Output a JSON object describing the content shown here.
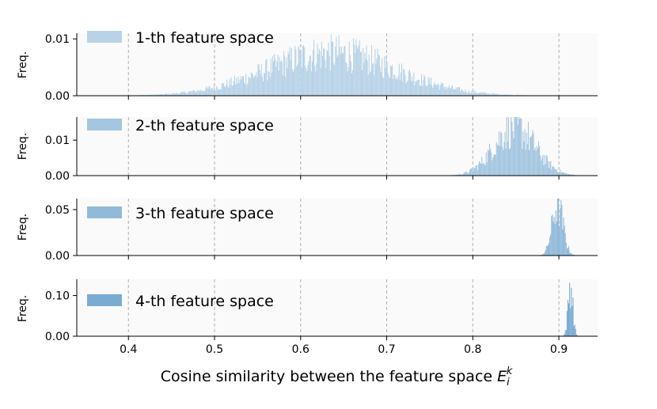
{
  "chart_data": {
    "type": "histogram",
    "xlabel": "Cosine similarity between the feature space",
    "xlabel_symbol": "E",
    "xlabel_sub": "i",
    "xlabel_sup": "k",
    "xlim": [
      0.34,
      0.945
    ],
    "x_ticks": [
      "0.4",
      "0.5",
      "0.6",
      "0.7",
      "0.8",
      "0.9"
    ],
    "x_tick_values": [
      0.4,
      0.5,
      0.6,
      0.7,
      0.8,
      0.9
    ],
    "grid": "x, dashed",
    "legend_placement": "upper-left",
    "panels": [
      {
        "ylabel": "Freq.",
        "legend": "1-th feature space",
        "color": "#b8d3e8",
        "ylim": [
          0,
          0.011
        ],
        "y_ticks": [
          "0.00",
          "0.01"
        ],
        "y_tick_values": [
          0,
          0.01
        ],
        "distribution": {
          "range": [
            0.37,
            0.92
          ],
          "peak_x": 0.635,
          "spread": 0.075,
          "peak_freq": 0.0075
        }
      },
      {
        "ylabel": "Freq.",
        "legend": "2-th feature space",
        "color": "#a4c6e0",
        "ylim": [
          0,
          0.0165
        ],
        "y_ticks": [
          "0.00",
          "0.01"
        ],
        "y_tick_values": [
          0,
          0.01
        ],
        "distribution": {
          "range": [
            0.67,
            0.93
          ],
          "peak_x": 0.848,
          "spread": 0.024,
          "peak_freq": 0.0135
        }
      },
      {
        "ylabel": "Freq.",
        "legend": "3-th feature space",
        "color": "#90b9da",
        "ylim": [
          0,
          0.062
        ],
        "y_ticks": [
          "0.00",
          "0.05"
        ],
        "y_tick_values": [
          0,
          0.05
        ],
        "distribution": {
          "range": [
            0.82,
            0.93
          ],
          "peak_x": 0.898,
          "spread": 0.0065,
          "peak_freq": 0.054
        }
      },
      {
        "ylabel": "Freq.",
        "legend": "4-th feature space",
        "color": "#7aabd2",
        "ylim": [
          0,
          0.14
        ],
        "y_ticks": [
          "0.00",
          "0.10"
        ],
        "y_tick_values": [
          0,
          0.1
        ],
        "distribution": {
          "range": [
            0.895,
            0.93
          ],
          "peak_x": 0.913,
          "spread": 0.0028,
          "peak_freq": 0.125
        }
      }
    ]
  }
}
